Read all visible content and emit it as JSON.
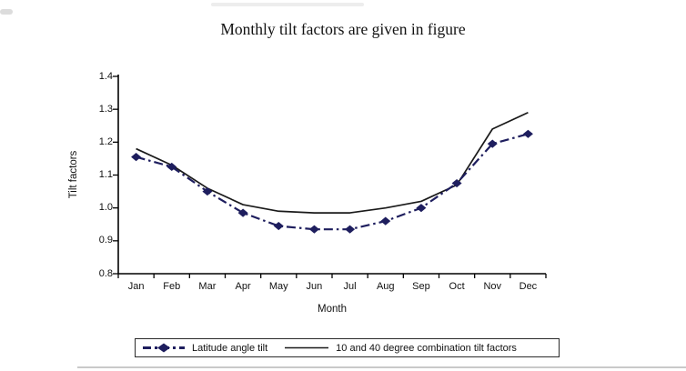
{
  "chart_data": {
    "type": "line",
    "title": "Monthly tilt factors are given in figure",
    "xlabel": "Month",
    "ylabel": "Tilt factors",
    "x": [
      "Jan",
      "Feb",
      "Mar",
      "Apr",
      "May",
      "Jun",
      "Jul",
      "Aug",
      "Sep",
      "Oct",
      "Nov",
      "Dec"
    ],
    "ylim": [
      0.8,
      1.4
    ],
    "ytick_step": 0.1,
    "grid": false,
    "legend_position": "boxed-bottom",
    "axis_color": "#000000",
    "series": [
      {
        "name": "Latitude angle tilt",
        "style": "dash-dot",
        "marker": "diamond",
        "color": "#1e1e5e",
        "values": [
          1.155,
          1.125,
          1.05,
          0.985,
          0.945,
          0.935,
          0.935,
          0.96,
          1.0,
          1.075,
          1.195,
          1.225
        ]
      },
      {
        "name": "10 and 40 degree combination tilt factors",
        "style": "solid",
        "marker": "none",
        "color": "#1a1a1a",
        "values": [
          1.18,
          1.13,
          1.06,
          1.01,
          0.99,
          0.985,
          0.985,
          1.0,
          1.02,
          1.07,
          1.24,
          1.29
        ]
      }
    ]
  }
}
